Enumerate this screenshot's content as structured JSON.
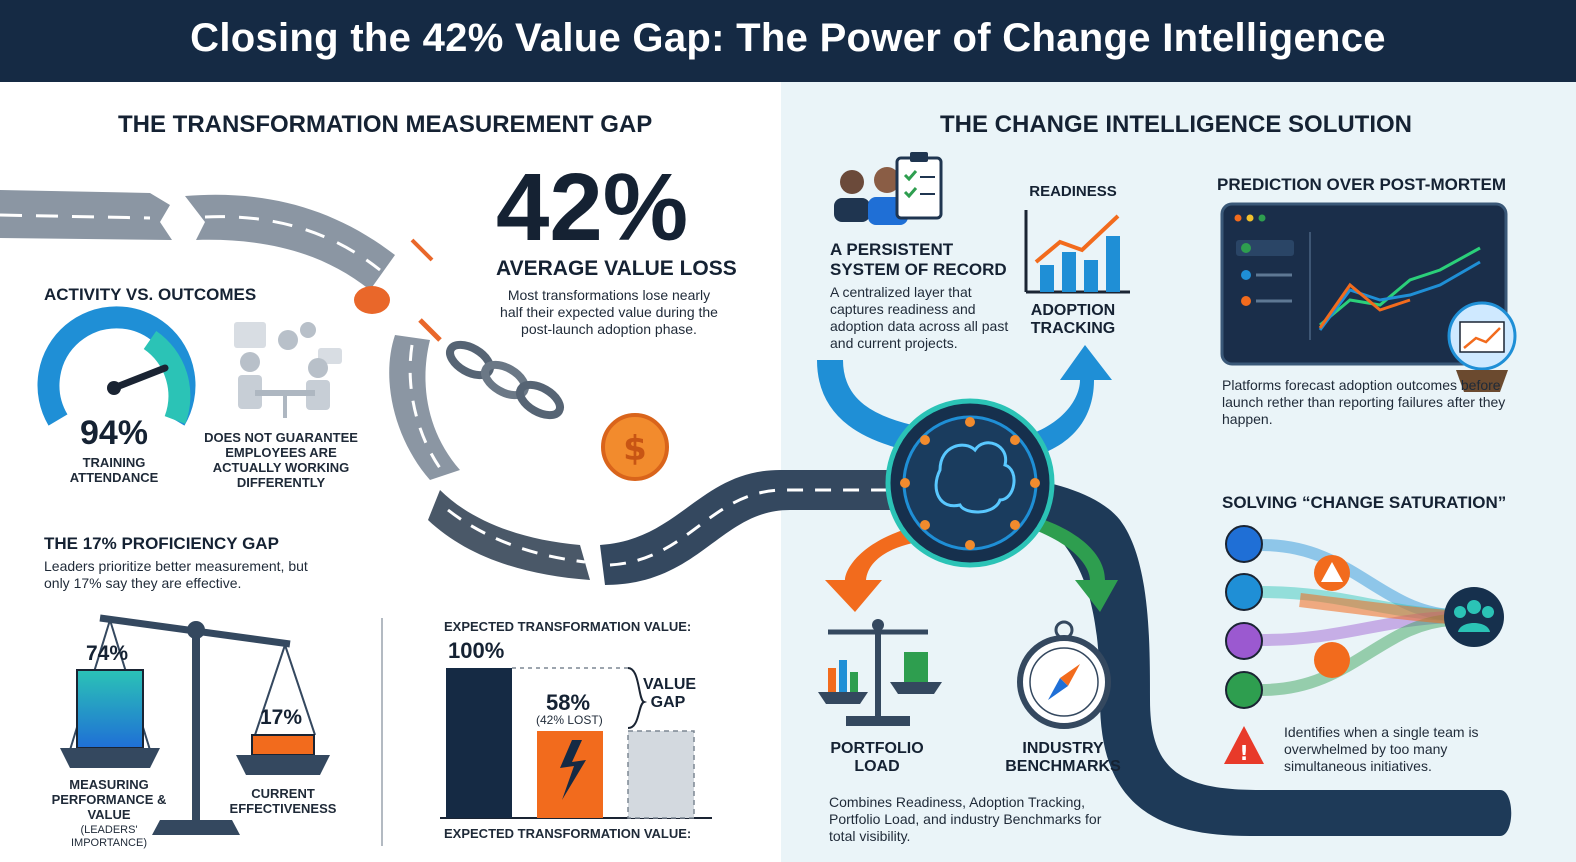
{
  "header": {
    "title": "Closing the 42% Value Gap: The Power of Change Intelligence"
  },
  "left": {
    "section_title": "THE TRANSFORMATION MEASUREMENT GAP",
    "big_stat": "42%",
    "big_stat_label": "AVERAGE VALUE LOSS",
    "big_stat_desc": "Most transformations lose nearly half their expected value during the post-launch adoption phase.",
    "activity": {
      "title": "ACTIVITY VS. OUTCOMES",
      "gauge_value": "94%",
      "gauge_label": "TRAINING ATTENDANCE",
      "gauge_fraction": 0.94,
      "note": "DOES NOT GUARANTEE EMPLOYEES ARE ACTUALLY WORKING DIFFERENTLY"
    },
    "proficiency": {
      "title": "THE 17% PROFICIENCY GAP",
      "desc": "Leaders prioritize better measurement, but only 17% say they are effective.",
      "left_value": "74%",
      "left_label": "MEASURING PERFORMANCE & VALUE",
      "left_sublabel": "(LEADERS' IMPORTANCE)",
      "right_value": "17%",
      "right_label": "CURRENT EFFECTIVENESS"
    },
    "value_chart": {
      "top_label": "EXPECTED TRANSFORMATION VALUE:",
      "bottom_label": "EXPECTED TRANSFORMATION VALUE:",
      "full_value": "100%",
      "actual_value": "58%",
      "actual_note": "(42% LOST)",
      "gap_label": "VALUE GAP",
      "full_fraction": 1.0,
      "actual_fraction": 0.58
    }
  },
  "right": {
    "section_title": "THE CHANGE INTELLIGENCE SOLUTION",
    "system": {
      "title": "A PERSISTENT SYSTEM OF RECORD",
      "desc": "A centralized layer that captures readiness and adoption data across all past and current projects."
    },
    "readiness_label": "READINESS",
    "adoption_label": "ADOPTION TRACKING",
    "prediction": {
      "title": "PREDICTION OVER POST-MORTEM",
      "desc": "Platforms forecast adoption outcomes before launch rether than reporting failures after they happen."
    },
    "portfolio_label": "PORTFOLIO LOAD",
    "benchmarks_label": "INDUSTRY BENCHMARKS",
    "combined_desc": "Combines Readiness, Adoption Tracking, Portfolio Load, and industry Benchmarks for total visibility.",
    "saturation": {
      "title": "SOLVING “CHANGE SATURATION”",
      "desc": "Identifies when a single team is overwhelmed by too many simultaneous initiatives."
    }
  },
  "colors": {
    "navy": "#152a44",
    "orange": "#f26b1d",
    "blue": "#1f8fd6",
    "teal": "#2bc3b6",
    "green": "#2e9e4f",
    "road": "#5f6d7c"
  },
  "icons": [
    "gear-icon",
    "brain-icon",
    "scale-icon",
    "compass-icon",
    "warning-icon",
    "team-icon",
    "chain-icon",
    "coin-icon",
    "dashboard-icon",
    "crystal-ball-icon",
    "clipboard-icon",
    "people-icon"
  ]
}
